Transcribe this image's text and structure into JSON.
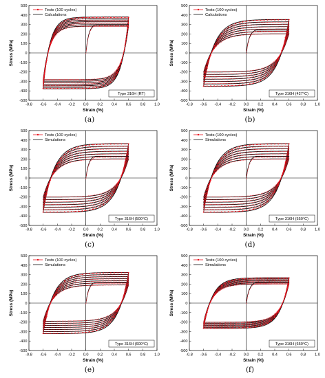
{
  "chart_data": [
    {
      "type": "line",
      "caption": "(a)",
      "xlabel": "Strain (%)",
      "ylabel": "Stress (MPa)",
      "xlim": [
        -0.8,
        1.0
      ],
      "ylim": [
        -500,
        500
      ],
      "xticks": [
        "-0.8",
        "-0.6",
        "-0.4",
        "-0.2",
        "0.0",
        "0.2",
        "0.4",
        "0.6",
        "0.8",
        "1.0"
      ],
      "yticks": [
        "-500",
        "-400",
        "-300",
        "-200",
        "-100",
        "0",
        "100",
        "200",
        "300",
        "400",
        "500"
      ],
      "legend_position": "top-left",
      "annotation": "Type 316H (RT)",
      "series": [
        {
          "name": "Tests (100 cycles)",
          "color": "#e8141e",
          "marker": "dot"
        },
        {
          "name": "Calculations",
          "color": "#111111",
          "marker": "none"
        }
      ],
      "loop": {
        "strain_amplitude": 0.6,
        "peak_first": 280,
        "peak_last": 375,
        "rounding": 0.1
      },
      "monotonic": {
        "start": 0,
        "end_strain": 0.6,
        "end_stress": 300
      }
    },
    {
      "type": "line",
      "caption": "(b)",
      "xlabel": "Strain (%)",
      "ylabel": "Stress (MPa)",
      "xlim": [
        -0.8,
        1.0
      ],
      "ylim": [
        -500,
        500
      ],
      "xticks": [
        "-0.8",
        "-0.6",
        "-0.4",
        "-0.2",
        "0.0",
        "0.2",
        "0.4",
        "0.6",
        "0.8",
        "1.0"
      ],
      "yticks": [
        "-500",
        "-400",
        "-300",
        "-200",
        "-100",
        "0",
        "100",
        "200",
        "300",
        "400",
        "500"
      ],
      "legend_position": "top-left",
      "annotation": "Type 316H (427°C)",
      "series": [
        {
          "name": "Tests (100 cycles)",
          "color": "#e8141e",
          "marker": "dot"
        },
        {
          "name": "Calculations",
          "color": "#111111",
          "marker": "none"
        }
      ],
      "loop": {
        "strain_amplitude": 0.6,
        "peak_first": 200,
        "peak_last": 350,
        "rounding": 0.16
      },
      "monotonic": {
        "start": 0,
        "end_strain": 0.6,
        "end_stress": 240
      }
    },
    {
      "type": "line",
      "caption": "(c)",
      "xlabel": "Strain (%)",
      "ylabel": "Stress (MPa)",
      "xlim": [
        -0.8,
        1.0
      ],
      "ylim": [
        -500,
        500
      ],
      "xticks": [
        "-0.8",
        "-0.6",
        "-0.4",
        "-0.2",
        "0.0",
        "0.2",
        "0.4",
        "0.6",
        "0.8",
        "1.0"
      ],
      "yticks": [
        "-500",
        "-400",
        "-300",
        "-200",
        "-100",
        "0",
        "100",
        "200",
        "300",
        "400",
        "500"
      ],
      "legend_position": "top-left",
      "annotation": "Type 316H (500°C)",
      "series": [
        {
          "name": "Tests (100 cycles)",
          "color": "#e8141e",
          "marker": "dot"
        },
        {
          "name": "Simulations",
          "color": "#111111",
          "marker": "none"
        }
      ],
      "loop": {
        "strain_amplitude": 0.6,
        "peak_first": 200,
        "peak_last": 360,
        "rounding": 0.16
      },
      "monotonic": {
        "start": 0,
        "end_strain": 0.6,
        "end_stress": 230
      }
    },
    {
      "type": "line",
      "caption": "(d)",
      "xlabel": "Strain (%)",
      "ylabel": "Stress (MPa)",
      "xlim": [
        -0.8,
        1.0
      ],
      "ylim": [
        -500,
        500
      ],
      "xticks": [
        "-0.8",
        "-0.6",
        "-0.4",
        "-0.2",
        "0.0",
        "0.2",
        "0.4",
        "0.6",
        "0.8",
        "1.0"
      ],
      "yticks": [
        "-500",
        "-400",
        "-300",
        "-200",
        "-100",
        "0",
        "100",
        "200",
        "300",
        "400",
        "500"
      ],
      "legend_position": "top-left",
      "annotation": "Type 316H (550°C)",
      "series": [
        {
          "name": "Tests (100 cycles)",
          "color": "#e8141e",
          "marker": "dot"
        },
        {
          "name": "Simulations",
          "color": "#111111",
          "marker": "none"
        }
      ],
      "loop": {
        "strain_amplitude": 0.6,
        "peak_first": 200,
        "peak_last": 360,
        "rounding": 0.16
      },
      "monotonic": {
        "start": 0,
        "end_strain": 0.6,
        "end_stress": 230
      }
    },
    {
      "type": "line",
      "caption": "(e)",
      "xlabel": "Strain (%)",
      "ylabel": "Stress (MPa)",
      "xlim": [
        -0.8,
        1.0
      ],
      "ylim": [
        -500,
        500
      ],
      "xticks": [
        "-0.8",
        "-0.6",
        "-0.4",
        "-0.2",
        "0.0",
        "0.2",
        "0.4",
        "0.6",
        "0.8",
        "1.0"
      ],
      "yticks": [
        "-500",
        "-400",
        "-300",
        "-200",
        "-100",
        "0",
        "100",
        "200",
        "300",
        "400",
        "500"
      ],
      "legend_position": "top-left",
      "annotation": "Type 316H (600°C)",
      "series": [
        {
          "name": "Tests (100 cycles)",
          "color": "#e8141e",
          "marker": "dot"
        },
        {
          "name": "Simulations",
          "color": "#111111",
          "marker": "none"
        }
      ],
      "loop": {
        "strain_amplitude": 0.6,
        "peak_first": 190,
        "peak_last": 320,
        "rounding": 0.15
      },
      "monotonic": {
        "start": 0,
        "end_strain": 0.6,
        "end_stress": 220
      }
    },
    {
      "type": "line",
      "caption": "(f)",
      "xlabel": "Strain (%)",
      "ylabel": "Stress (MPa)",
      "xlim": [
        -0.8,
        1.0
      ],
      "ylim": [
        -500,
        500
      ],
      "xticks": [
        "-0.8",
        "-0.6",
        "-0.4",
        "-0.2",
        "0.0",
        "0.2",
        "0.4",
        "0.6",
        "0.8",
        "1.0"
      ],
      "yticks": [
        "-500",
        "-400",
        "-300",
        "-200",
        "-100",
        "0",
        "100",
        "200",
        "300",
        "400",
        "500"
      ],
      "legend_position": "top-left",
      "annotation": "Type 316H (650°C)",
      "series": [
        {
          "name": "Tests (100 cycles)",
          "color": "#e8141e",
          "marker": "dot"
        },
        {
          "name": "Simulations",
          "color": "#111111",
          "marker": "none"
        }
      ],
      "loop": {
        "strain_amplitude": 0.6,
        "peak_first": 200,
        "peak_last": 265,
        "rounding": 0.13
      },
      "monotonic": {
        "start": 0,
        "end_strain": 0.6,
        "end_stress": 215
      }
    }
  ]
}
